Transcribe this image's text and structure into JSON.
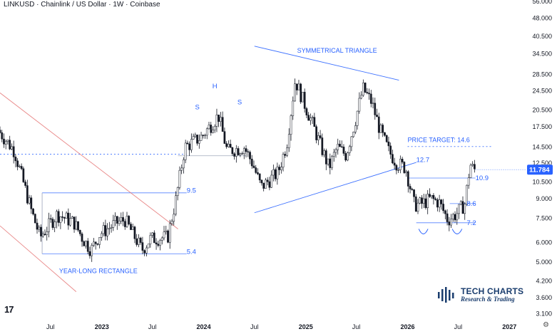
{
  "header": {
    "title": "LINKUSD · Chainlink / US Dollar · 1W · Coinbase"
  },
  "price_badge": {
    "value": "11.784",
    "color": "#2962ff"
  },
  "branding": {
    "name": "TECH CHARTS",
    "tagline": "Research & Trading"
  },
  "icons": {
    "logo": "tradingview-logo-icon",
    "brand": "tech-charts-bars-icon",
    "settings": "gear-icon"
  },
  "colors": {
    "up": "#ffffff",
    "down": "#131722",
    "annotation": "#2962ff",
    "diagonal": "#e57373"
  },
  "chart_data": {
    "type": "candlestick",
    "y_scale": "log",
    "y_ticks": [
      "3.100",
      "3.600",
      "4.200",
      "5.000",
      "6.000",
      "7.500",
      "9.000",
      "10.500",
      "12.500",
      "14.500",
      "17.500",
      "20.500",
      "24.500",
      "28.500",
      "34.500",
      "40.500",
      "48.000",
      "56.000"
    ],
    "x_ticks": [
      {
        "label": "Jul",
        "date": "2022-07",
        "bold": false
      },
      {
        "label": "2023",
        "date": "2023-01",
        "bold": true
      },
      {
        "label": "Jul",
        "date": "2023-07",
        "bold": false
      },
      {
        "label": "2024",
        "date": "2024-01",
        "bold": true
      },
      {
        "label": "Jul",
        "date": "2024-07",
        "bold": false
      },
      {
        "label": "2025",
        "date": "2025-01",
        "bold": true
      },
      {
        "label": "Jul",
        "date": "2025-07",
        "bold": false
      },
      {
        "label": "2026",
        "date": "2026-01",
        "bold": true
      },
      {
        "label": "Jul",
        "date": "2026-07",
        "bold": false
      },
      {
        "label": "2027",
        "date": "2027-01",
        "bold": true
      }
    ],
    "price_path": [
      [
        "2022-01",
        17.0
      ],
      [
        "2022-03",
        14.0
      ],
      [
        "2022-05",
        8.0
      ],
      [
        "2022-06",
        6.3
      ],
      [
        "2022-08",
        7.8
      ],
      [
        "2022-10",
        7.2
      ],
      [
        "2022-11",
        6.2
      ],
      [
        "2022-12",
        5.6
      ],
      [
        "2023-01",
        6.5
      ],
      [
        "2023-03",
        7.2
      ],
      [
        "2023-04",
        7.4
      ],
      [
        "2023-06",
        5.6
      ],
      [
        "2023-07",
        6.2
      ],
      [
        "2023-09",
        6.3
      ],
      [
        "2023-10",
        9.0
      ],
      [
        "2023-11",
        14.5
      ],
      [
        "2024-01",
        16.0
      ],
      [
        "2024-03",
        19.5
      ],
      [
        "2024-04",
        14.0
      ],
      [
        "2024-06",
        14.5
      ],
      [
        "2024-07",
        12.5
      ],
      [
        "2024-08",
        10.0
      ],
      [
        "2024-10",
        11.5
      ],
      [
        "2024-11",
        15.0
      ],
      [
        "2024-12",
        27.0
      ],
      [
        "2025-01",
        22.0
      ],
      [
        "2025-02",
        18.0
      ],
      [
        "2025-04",
        12.0
      ],
      [
        "2025-05",
        14.5
      ],
      [
        "2025-06",
        13.5
      ],
      [
        "2025-07",
        18.0
      ],
      [
        "2025-08",
        25.0
      ],
      [
        "2025-09",
        22.0
      ],
      [
        "2025-10",
        17.0
      ],
      [
        "2025-11",
        14.0
      ],
      [
        "2025-12",
        12.5
      ],
      [
        "2026-01",
        12.0
      ],
      [
        "2026-02",
        8.5
      ],
      [
        "2026-03",
        8.6
      ],
      [
        "2026-04",
        9.0
      ],
      [
        "2026-05",
        8.7
      ],
      [
        "2026-06",
        7.4
      ],
      [
        "2026-07",
        7.8
      ],
      [
        "2026-08",
        8.6
      ],
      [
        "2026-08-20",
        12.4
      ],
      [
        "2026-09",
        11.78
      ]
    ],
    "annotations": [
      {
        "label": "YEAR-LONG RECTANGLE",
        "at": [
          "2022-08",
          4.6
        ]
      },
      {
        "label": "9.5",
        "at": [
          "2023-11",
          9.7
        ]
      },
      {
        "label": "5.4",
        "at": [
          "2023-11",
          5.5
        ]
      },
      {
        "label": "S",
        "at": [
          "2023-12",
          21.0
        ]
      },
      {
        "label": "H",
        "at": [
          "2024-02",
          25.5
        ]
      },
      {
        "label": "S",
        "at": [
          "2024-05",
          22.0
        ]
      },
      {
        "label": "SYMMETRICAL TRIANGLE",
        "at": [
          "2024-12",
          35.5
        ]
      },
      {
        "label": "PRICE TARGET: 14.6",
        "at": [
          "2026-01",
          15.5
        ]
      },
      {
        "label": "12.7",
        "at": [
          "2026-02",
          12.9
        ]
      },
      {
        "label": "10.9",
        "at": [
          "2026-09",
          10.9
        ]
      },
      {
        "label": "8.6",
        "at": [
          "2026-08",
          8.6
        ]
      },
      {
        "label": "7.2",
        "at": [
          "2026-08",
          7.2
        ]
      }
    ],
    "levels": [
      {
        "name": "rectangle-top",
        "value": 9.5,
        "from": "2022-06",
        "to": "2023-11"
      },
      {
        "name": "rectangle-bottom",
        "value": 5.4,
        "from": "2022-06",
        "to": "2023-11"
      },
      {
        "name": "neckline-hs",
        "value": 13.4,
        "from": "2023-10",
        "to": "2024-06"
      },
      {
        "name": "resistance-dotted",
        "value": 13.6,
        "from": "2022-01",
        "to": "2023-11"
      },
      {
        "name": "price-target-dotted",
        "value": 14.6,
        "from": "2026-01",
        "to": "2026-11"
      },
      {
        "name": "neckline-10.9",
        "value": 10.9,
        "from": "2026-01",
        "to": "2026-09"
      },
      {
        "name": "base-7.2",
        "value": 7.2,
        "from": "2026-02",
        "to": "2026-09"
      },
      {
        "name": "level-8.6",
        "value": 8.6,
        "from": "2026-06",
        "to": "2026-09"
      }
    ],
    "trendlines": [
      {
        "name": "triangle-upper",
        "from": [
          "2024-07",
          37.0
        ],
        "to": [
          "2025-12",
          27.0
        ]
      },
      {
        "name": "triangle-lower",
        "from": [
          "2024-07",
          7.9
        ],
        "to": [
          "2026-02",
          12.6
        ]
      },
      {
        "name": "diagonal-down",
        "from": [
          "2022-01",
          24.0
        ],
        "to": [
          "2023-10",
          6.8
        ]
      },
      {
        "name": "diagonal-low",
        "from": [
          "2022-01",
          7.0
        ],
        "to": [
          "2022-10",
          3.8
        ]
      }
    ]
  }
}
